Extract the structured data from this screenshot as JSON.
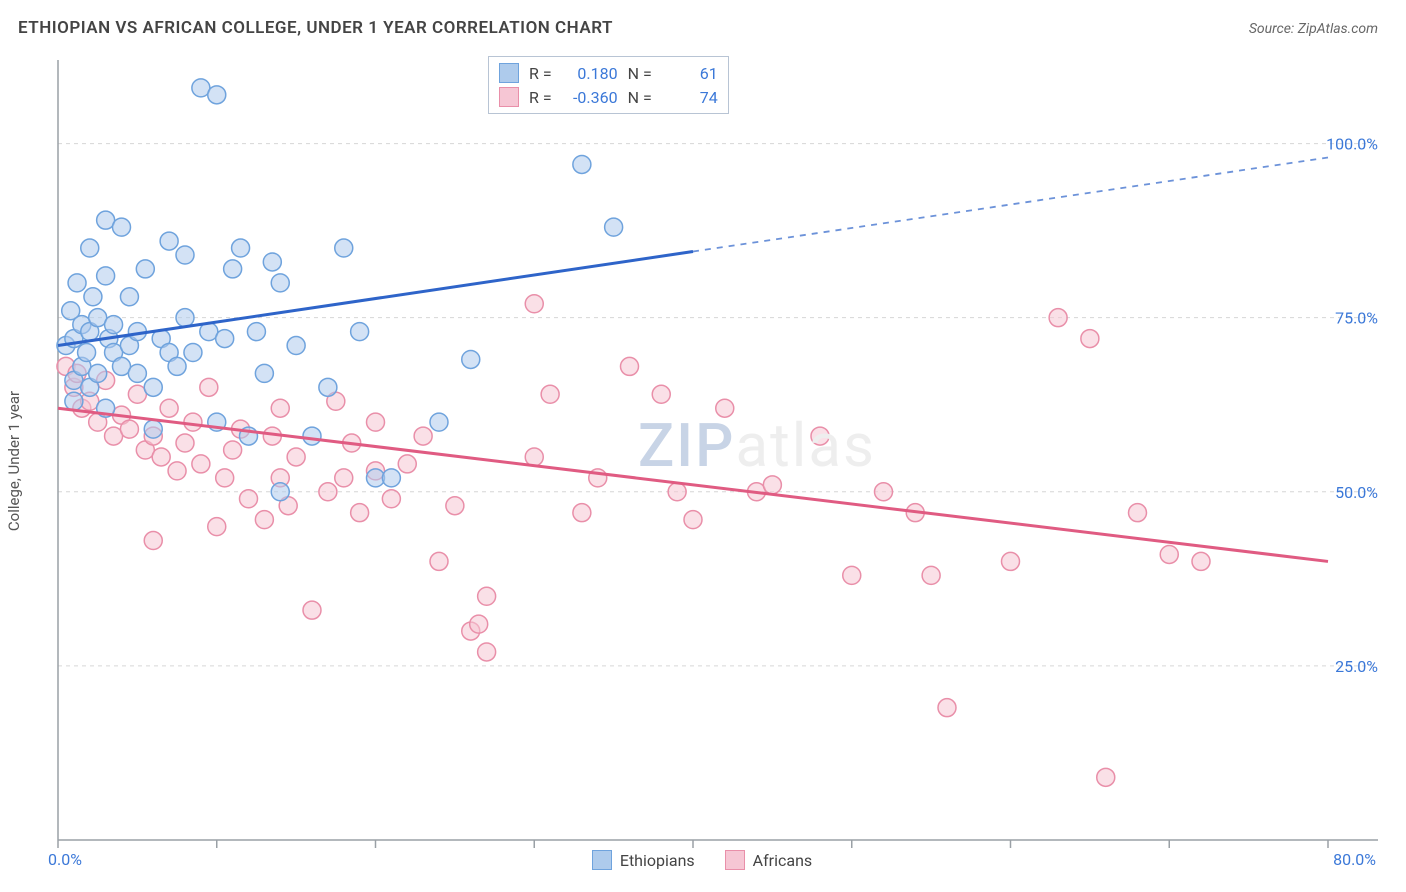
{
  "title": "ETHIOPIAN VS AFRICAN COLLEGE, UNDER 1 YEAR CORRELATION CHART",
  "source": "Source: ZipAtlas.com",
  "watermark_a": "ZIP",
  "watermark_b": "atlas",
  "y_axis_label": "College, Under 1 year",
  "chart": {
    "type": "scatter",
    "background_color": "#ffffff",
    "grid_color": "#d6d6d6",
    "axis_color": "#9aa0a6",
    "tick_color": "#9aa0a6",
    "xlim": [
      0,
      80
    ],
    "ylim": [
      0,
      112
    ],
    "x_ticks": [
      0,
      10,
      20,
      30,
      40,
      50,
      60,
      70,
      80
    ],
    "x_tick_labels": {
      "0": "0.0%",
      "80": "80.0%"
    },
    "y_gridlines": [
      25,
      50,
      75,
      100
    ],
    "y_tick_labels": {
      "25": "25.0%",
      "50": "50.0%",
      "75": "75.0%",
      "100": "100.0%"
    },
    "marker_radius": 9,
    "marker_opacity": 0.55,
    "line_width": 3,
    "series": [
      {
        "name": "Ethiopians",
        "fill": "#aecbec",
        "stroke": "#6fa3dd",
        "line_color": "#2e64c9",
        "R": "0.180",
        "N": "61",
        "trend": {
          "x1": 0,
          "y1": 71,
          "x2": 80,
          "y2": 98,
          "solid_until_x": 40
        },
        "points": [
          [
            0.5,
            71
          ],
          [
            0.8,
            76
          ],
          [
            1,
            66
          ],
          [
            1,
            72
          ],
          [
            1.2,
            80
          ],
          [
            1.5,
            68
          ],
          [
            1.5,
            74
          ],
          [
            1.8,
            70
          ],
          [
            2,
            65
          ],
          [
            2,
            73
          ],
          [
            2.2,
            78
          ],
          [
            2.5,
            75
          ],
          [
            2.5,
            67
          ],
          [
            3,
            62
          ],
          [
            3,
            89
          ],
          [
            3.2,
            72
          ],
          [
            3.5,
            70
          ],
          [
            3.5,
            74
          ],
          [
            4,
            68
          ],
          [
            4,
            88
          ],
          [
            4.5,
            71
          ],
          [
            4.5,
            78
          ],
          [
            5,
            67
          ],
          [
            5,
            73
          ],
          [
            5.5,
            82
          ],
          [
            6,
            65
          ],
          [
            6.5,
            72
          ],
          [
            7,
            86
          ],
          [
            7,
            70
          ],
          [
            7.5,
            68
          ],
          [
            8,
            84
          ],
          [
            8,
            75
          ],
          [
            8.5,
            70
          ],
          [
            9,
            108
          ],
          [
            9.5,
            73
          ],
          [
            10,
            107
          ],
          [
            10,
            60
          ],
          [
            10.5,
            72
          ],
          [
            11,
            82
          ],
          [
            11.5,
            85
          ],
          [
            12,
            58
          ],
          [
            12.5,
            73
          ],
          [
            13,
            67
          ],
          [
            13.5,
            83
          ],
          [
            14,
            80
          ],
          [
            15,
            71
          ],
          [
            16,
            58
          ],
          [
            17,
            65
          ],
          [
            18,
            85
          ],
          [
            19,
            73
          ],
          [
            20,
            52
          ],
          [
            21,
            52
          ],
          [
            24,
            60
          ],
          [
            26,
            69
          ],
          [
            33,
            97
          ],
          [
            35,
            88
          ],
          [
            14,
            50
          ],
          [
            6,
            59
          ],
          [
            3,
            81
          ],
          [
            2,
            85
          ],
          [
            1,
            63
          ]
        ]
      },
      {
        "name": "Africans",
        "fill": "#f6c6d4",
        "stroke": "#e98fa9",
        "line_color": "#e05b82",
        "R": "-0.360",
        "N": "74",
        "trend": {
          "x1": 0,
          "y1": 62,
          "x2": 80,
          "y2": 40,
          "solid_until_x": 80
        },
        "points": [
          [
            0.5,
            68
          ],
          [
            1,
            65
          ],
          [
            1.2,
            67
          ],
          [
            1.5,
            62
          ],
          [
            2,
            63
          ],
          [
            2.5,
            60
          ],
          [
            3,
            66
          ],
          [
            3.5,
            58
          ],
          [
            4,
            61
          ],
          [
            4.5,
            59
          ],
          [
            5,
            64
          ],
          [
            5.5,
            56
          ],
          [
            6,
            58
          ],
          [
            6.5,
            55
          ],
          [
            7,
            62
          ],
          [
            7.5,
            53
          ],
          [
            8,
            57
          ],
          [
            8.5,
            60
          ],
          [
            9,
            54
          ],
          [
            9.5,
            65
          ],
          [
            10,
            45
          ],
          [
            10.5,
            52
          ],
          [
            11,
            56
          ],
          [
            11.5,
            59
          ],
          [
            12,
            49
          ],
          [
            13,
            46
          ],
          [
            13.5,
            58
          ],
          [
            14,
            52
          ],
          [
            14.5,
            48
          ],
          [
            15,
            55
          ],
          [
            16,
            33
          ],
          [
            17,
            50
          ],
          [
            17.5,
            63
          ],
          [
            18,
            52
          ],
          [
            18.5,
            57
          ],
          [
            19,
            47
          ],
          [
            20,
            53
          ],
          [
            21,
            49
          ],
          [
            22,
            54
          ],
          [
            23,
            58
          ],
          [
            24,
            40
          ],
          [
            25,
            48
          ],
          [
            26,
            30
          ],
          [
            26.5,
            31
          ],
          [
            27,
            35
          ],
          [
            27,
            27
          ],
          [
            30,
            77
          ],
          [
            31,
            64
          ],
          [
            33,
            47
          ],
          [
            34,
            52
          ],
          [
            36,
            68
          ],
          [
            38,
            64
          ],
          [
            39,
            50
          ],
          [
            40,
            46
          ],
          [
            42,
            62
          ],
          [
            44,
            50
          ],
          [
            45,
            51
          ],
          [
            48,
            58
          ],
          [
            50,
            38
          ],
          [
            52,
            50
          ],
          [
            54,
            47
          ],
          [
            55,
            38
          ],
          [
            56,
            19
          ],
          [
            60,
            40
          ],
          [
            63,
            75
          ],
          [
            65,
            72
          ],
          [
            66,
            9
          ],
          [
            68,
            47
          ],
          [
            70,
            41
          ],
          [
            72,
            40
          ],
          [
            6,
            43
          ],
          [
            14,
            62
          ],
          [
            20,
            60
          ],
          [
            30,
            55
          ]
        ]
      }
    ]
  },
  "legend_stats_labels": {
    "R": "R =",
    "N": "N ="
  },
  "bottom_legend": [
    "Ethiopians",
    "Africans"
  ]
}
